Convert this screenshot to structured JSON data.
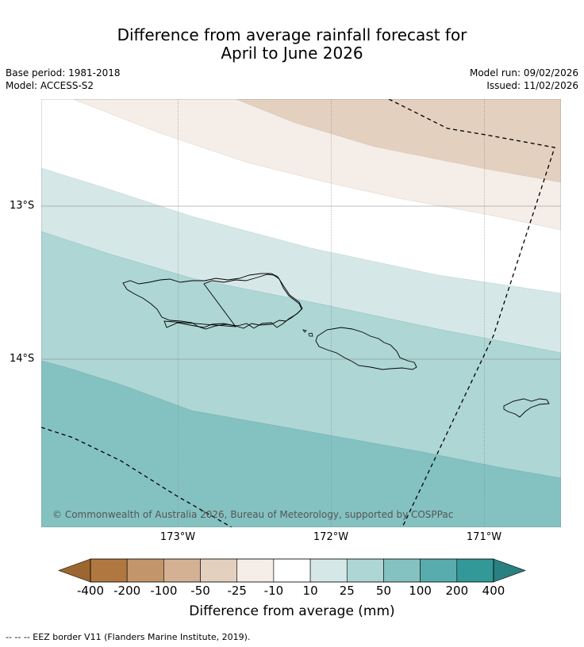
{
  "title": {
    "line1": "Difference from average rainfall forecast for",
    "line2": "April to June 2026"
  },
  "meta": {
    "base_period": "Base period: 1981-2018",
    "model": "Model: ACCESS-S2",
    "model_run": "Model run: 09/02/2026",
    "issued": "Issued: 11/02/2026"
  },
  "map": {
    "copyright": "© Commonwealth of Australia 2026, Bureau of Meteorology, supported by COSPPac",
    "lat_labels": [
      "13°S",
      "14°S"
    ],
    "lon_labels": [
      "173°W",
      "172°W",
      "171°W"
    ]
  },
  "colorbar": {
    "title": "Difference from average (mm)",
    "ticks": [
      "-400",
      "-200",
      "-100",
      "-50",
      "-25",
      "-10",
      "10",
      "25",
      "50",
      "100",
      "200",
      "400"
    ],
    "colors": [
      "#9c6630",
      "#b07840",
      "#c3956a",
      "#d4b193",
      "#e3d0bf",
      "#f5ede7",
      "#ffffff",
      "#d5e8e7",
      "#add6d5",
      "#84c2c1",
      "#58acad",
      "#339898",
      "#2a7f80"
    ]
  },
  "footnote": "--  --  -- EEZ border V11 (Flanders Marine Institute, 2019)."
}
